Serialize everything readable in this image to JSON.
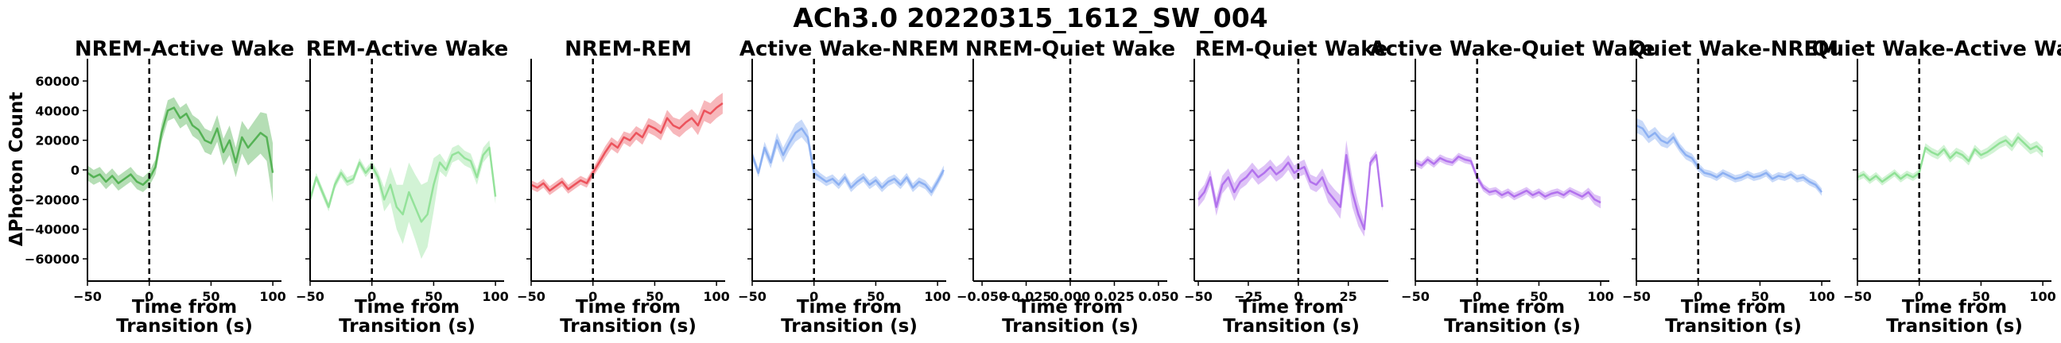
{
  "figure": {
    "title": "ACh3.0 20220315_1612_SW_004",
    "ylabel": "ΔPhoton Count",
    "xlabel_line1": "Time from",
    "xlabel_line2": "Transition (s)",
    "ylim": [
      -75000,
      75000
    ],
    "yticks": [
      -60000,
      -40000,
      -20000,
      0,
      20000,
      40000,
      60000
    ],
    "yticklabels": [
      "−60000",
      "−40000",
      "−20000",
      "0",
      "20000",
      "40000",
      "60000"
    ]
  },
  "chart_data": [
    {
      "type": "line",
      "title": "NREM-Active Wake",
      "color": "#2ca02c",
      "opacity": 0.7,
      "xlim": [
        -50,
        107
      ],
      "xticks": [
        -50,
        0,
        50,
        100
      ],
      "xticklabels": [
        "−50",
        "0",
        "50",
        "100"
      ],
      "x": [
        -50,
        -45,
        -40,
        -35,
        -30,
        -25,
        -20,
        -15,
        -10,
        -5,
        0,
        5,
        10,
        15,
        20,
        25,
        30,
        35,
        40,
        45,
        50,
        55,
        60,
        65,
        70,
        75,
        80,
        85,
        90,
        95,
        100
      ],
      "y": [
        -2000,
        -5000,
        -3000,
        -8000,
        -4000,
        -9000,
        -6000,
        -3000,
        -8000,
        -10000,
        -6000,
        2000,
        25000,
        40000,
        42000,
        35000,
        38000,
        30000,
        27000,
        20000,
        18000,
        28000,
        12000,
        20000,
        5000,
        22000,
        15000,
        20000,
        25000,
        22000,
        -2000
      ],
      "band": [
        5000,
        5000,
        5000,
        5000,
        5000,
        5000,
        5000,
        5000,
        5000,
        5000,
        5000,
        5000,
        6000,
        7000,
        7000,
        7000,
        7000,
        7000,
        7000,
        8000,
        8000,
        9000,
        9000,
        10000,
        10000,
        11000,
        12000,
        13000,
        14000,
        16000,
        20000
      ]
    },
    {
      "type": "line",
      "title": "REM-Active Wake",
      "color": "#7fdc86",
      "opacity": 0.75,
      "xlim": [
        -50,
        107
      ],
      "xticks": [
        -50,
        0,
        50,
        100
      ],
      "xticklabels": [
        "−50",
        "0",
        "50",
        "100"
      ],
      "x": [
        -50,
        -45,
        -40,
        -35,
        -30,
        -25,
        -20,
        -15,
        -10,
        -5,
        0,
        5,
        10,
        15,
        20,
        25,
        30,
        35,
        40,
        45,
        50,
        55,
        60,
        65,
        70,
        75,
        80,
        85,
        90,
        95,
        100
      ],
      "y": [
        -20000,
        -5000,
        -15000,
        -25000,
        -10000,
        -2000,
        -8000,
        -6000,
        5000,
        -2000,
        3000,
        -5000,
        -20000,
        -10000,
        -25000,
        -30000,
        -15000,
        -25000,
        -35000,
        -30000,
        -10000,
        5000,
        0,
        10000,
        12000,
        8000,
        6000,
        -5000,
        10000,
        15000,
        -18000
      ],
      "band": [
        3000,
        3000,
        3000,
        3000,
        3000,
        3000,
        3000,
        3000,
        3000,
        3000,
        3000,
        4000,
        8000,
        12000,
        15000,
        20000,
        20000,
        22000,
        25000,
        22000,
        18000,
        6000,
        5000,
        5000,
        5000,
        5000,
        5000,
        5000,
        5000,
        5000,
        5000
      ]
    },
    {
      "type": "line",
      "title": "NREM-REM",
      "color": "#e8323c",
      "opacity": 0.75,
      "xlim": [
        -50,
        107
      ],
      "xticks": [
        -50,
        0,
        50,
        100
      ],
      "xticklabels": [
        "−50",
        "0",
        "50",
        "100"
      ],
      "x": [
        -50,
        -45,
        -40,
        -35,
        -30,
        -25,
        -20,
        -15,
        -10,
        -5,
        0,
        5,
        10,
        15,
        20,
        25,
        30,
        35,
        40,
        45,
        50,
        55,
        60,
        65,
        70,
        75,
        80,
        85,
        90,
        95,
        100,
        105
      ],
      "y": [
        -10000,
        -12000,
        -9000,
        -14000,
        -11000,
        -8000,
        -13000,
        -10000,
        -7000,
        -9000,
        -2000,
        5000,
        12000,
        18000,
        15000,
        22000,
        20000,
        25000,
        22000,
        30000,
        28000,
        25000,
        35000,
        30000,
        28000,
        32000,
        35000,
        30000,
        40000,
        38000,
        42000,
        45000
      ],
      "band": [
        3000,
        3000,
        3000,
        3000,
        3000,
        3000,
        3000,
        3000,
        3000,
        3000,
        3000,
        3500,
        4000,
        4000,
        4000,
        4000,
        4500,
        4500,
        5000,
        5000,
        5000,
        5000,
        5500,
        5500,
        6000,
        6000,
        6000,
        6500,
        7000,
        7000,
        7000,
        7000
      ]
    },
    {
      "type": "line",
      "title": "Active Wake-NREM",
      "color": "#6495ed",
      "opacity": 0.6,
      "xlim": [
        -50,
        107
      ],
      "xticks": [
        -50,
        0,
        50,
        100
      ],
      "xticklabels": [
        "−50",
        "0",
        "50",
        "100"
      ],
      "x": [
        -50,
        -45,
        -40,
        -35,
        -30,
        -25,
        -20,
        -15,
        -10,
        -5,
        0,
        5,
        10,
        15,
        20,
        25,
        30,
        35,
        40,
        45,
        50,
        55,
        60,
        65,
        70,
        75,
        80,
        85,
        90,
        95,
        100,
        105
      ],
      "y": [
        10000,
        -2000,
        15000,
        5000,
        20000,
        10000,
        18000,
        25000,
        28000,
        22000,
        -2000,
        -5000,
        -8000,
        -6000,
        -10000,
        -5000,
        -12000,
        -8000,
        -5000,
        -10000,
        -7000,
        -12000,
        -8000,
        -6000,
        -10000,
        -5000,
        -12000,
        -8000,
        -10000,
        -15000,
        -8000,
        0
      ],
      "band": [
        3000,
        3000,
        4000,
        4000,
        5000,
        5000,
        5000,
        6000,
        6000,
        5000,
        4000,
        3000,
        3000,
        3000,
        3000,
        3000,
        3000,
        3000,
        3000,
        3000,
        3000,
        3000,
        3000,
        3000,
        3000,
        3000,
        3000,
        3000,
        3000,
        3000,
        3000,
        3000
      ]
    },
    {
      "type": "line",
      "title": "NREM-Quiet Wake",
      "color": "#6495ed",
      "opacity": 0.6,
      "xlim": [
        -0.055,
        0.055
      ],
      "xticks": [
        -0.05,
        -0.025,
        0,
        0.025,
        0.05
      ],
      "xticklabels": [
        "−0.050",
        "−0.025",
        "0.000",
        "0.025",
        "0.050"
      ],
      "x": [],
      "y": [],
      "band": []
    },
    {
      "type": "line",
      "title": "REM-Quiet Wake",
      "color": "#a050e8",
      "opacity": 0.7,
      "xlim": [
        -52,
        45
      ],
      "xticks": [
        -50,
        -25,
        0,
        25
      ],
      "xticklabels": [
        "−50",
        "−25",
        "0",
        "25"
      ],
      "x": [
        -50,
        -47,
        -44,
        -41,
        -38,
        -35,
        -32,
        -29,
        -26,
        -23,
        -20,
        -17,
        -14,
        -11,
        -8,
        -5,
        -2,
        0,
        3,
        6,
        9,
        12,
        15,
        18,
        21,
        24,
        27,
        30,
        33,
        36,
        39,
        42
      ],
      "y": [
        -20000,
        -15000,
        -5000,
        -25000,
        -10000,
        -5000,
        -15000,
        -8000,
        -5000,
        0,
        -5000,
        -2000,
        2000,
        -3000,
        0,
        5000,
        -2000,
        0,
        2000,
        -8000,
        -10000,
        -5000,
        -15000,
        -20000,
        -25000,
        10000,
        -15000,
        -30000,
        -40000,
        5000,
        10000,
        -25000
      ],
      "band": [
        5000,
        5000,
        5000,
        6000,
        6000,
        6000,
        6000,
        5000,
        5000,
        5000,
        5000,
        5000,
        5000,
        5000,
        5000,
        5000,
        5000,
        5000,
        5000,
        5000,
        5000,
        6000,
        7000,
        7000,
        8000,
        10000,
        10000,
        8000,
        5000,
        3000,
        3000,
        3000
      ]
    },
    {
      "type": "line",
      "title": "Active Wake-Quiet Wake",
      "color": "#a050e8",
      "opacity": 0.7,
      "xlim": [
        -50,
        107
      ],
      "xticks": [
        -50,
        0,
        50,
        100
      ],
      "xticklabels": [
        "−50",
        "0",
        "50",
        "100"
      ],
      "x": [
        -50,
        -45,
        -40,
        -35,
        -30,
        -25,
        -20,
        -15,
        -10,
        -5,
        0,
        5,
        10,
        15,
        20,
        25,
        30,
        35,
        40,
        45,
        50,
        55,
        60,
        65,
        70,
        75,
        80,
        85,
        90,
        95,
        100
      ],
      "y": [
        5000,
        3000,
        7000,
        4000,
        8000,
        6000,
        5000,
        9000,
        7000,
        6000,
        -5000,
        -12000,
        -15000,
        -14000,
        -17000,
        -15000,
        -18000,
        -16000,
        -14000,
        -17000,
        -15000,
        -18000,
        -16000,
        -15000,
        -17000,
        -14000,
        -16000,
        -18000,
        -15000,
        -20000,
        -22000
      ],
      "band": [
        2500,
        2500,
        2500,
        2500,
        2500,
        2500,
        2500,
        2500,
        2500,
        2500,
        2500,
        2500,
        2500,
        2500,
        2500,
        2500,
        2500,
        2500,
        2500,
        2500,
        2500,
        2500,
        2500,
        2500,
        2500,
        2500,
        2500,
        2500,
        3000,
        3500,
        4000
      ]
    },
    {
      "type": "line",
      "title": "Quiet Wake-NREM",
      "color": "#6495ed",
      "opacity": 0.6,
      "xlim": [
        -50,
        107
      ],
      "xticks": [
        -50,
        0,
        50,
        100
      ],
      "xticklabels": [
        "−50",
        "0",
        "50",
        "100"
      ],
      "x": [
        -50,
        -45,
        -40,
        -35,
        -30,
        -25,
        -20,
        -15,
        -10,
        -5,
        0,
        5,
        10,
        15,
        20,
        25,
        30,
        35,
        40,
        45,
        50,
        55,
        60,
        65,
        70,
        75,
        80,
        85,
        90,
        95,
        100
      ],
      "y": [
        30000,
        28000,
        22000,
        25000,
        20000,
        18000,
        22000,
        15000,
        10000,
        8000,
        2000,
        -2000,
        -3000,
        -5000,
        -2000,
        -4000,
        -6000,
        -5000,
        -3000,
        -5000,
        -4000,
        -2000,
        -6000,
        -4000,
        -5000,
        -3000,
        -6000,
        -5000,
        -8000,
        -10000,
        -15000
      ],
      "band": [
        5000,
        5000,
        4000,
        4000,
        4000,
        3500,
        3500,
        3000,
        3000,
        3000,
        3000,
        2500,
        2500,
        2500,
        2500,
        2500,
        2500,
        2500,
        2500,
        2500,
        2500,
        2500,
        2500,
        2500,
        2500,
        2500,
        2500,
        2500,
        2500,
        2500,
        2500
      ]
    },
    {
      "type": "line",
      "title": "Quiet Wake-Active Wake",
      "color": "#7fdc86",
      "opacity": 0.8,
      "xlim": [
        -50,
        107
      ],
      "xticks": [
        -50,
        0,
        50,
        100
      ],
      "xticklabels": [
        "−50",
        "0",
        "50",
        "100"
      ],
      "x": [
        -50,
        -45,
        -40,
        -35,
        -30,
        -25,
        -20,
        -15,
        -10,
        -5,
        0,
        5,
        10,
        15,
        20,
        25,
        30,
        35,
        40,
        45,
        50,
        55,
        60,
        65,
        70,
        75,
        80,
        85,
        90,
        95,
        100
      ],
      "y": [
        -5000,
        -3000,
        -7000,
        -4000,
        -8000,
        -5000,
        -2000,
        -6000,
        -3000,
        -5000,
        -2000,
        15000,
        12000,
        10000,
        14000,
        8000,
        12000,
        10000,
        6000,
        14000,
        10000,
        12000,
        15000,
        18000,
        20000,
        16000,
        22000,
        18000,
        14000,
        16000,
        12000
      ],
      "band": [
        2500,
        2500,
        2500,
        2500,
        2500,
        2500,
        2500,
        2500,
        2500,
        2500,
        2500,
        3000,
        3000,
        3000,
        3000,
        3000,
        3000,
        3000,
        3000,
        3000,
        3000,
        3000,
        3500,
        3500,
        3500,
        3500,
        3500,
        3500,
        3500,
        3500,
        3500
      ]
    }
  ]
}
